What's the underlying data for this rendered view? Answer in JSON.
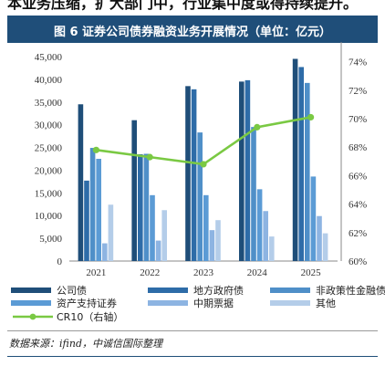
{
  "header": {
    "cut_text": "本业务压缩，扩大部门中，行业集中度或得持续提升。",
    "figure_title": "图 6 证券公司债券融资业务开展情况（单位：亿元）"
  },
  "source": "数据来源：ifind，中诚信国际整理",
  "colors": {
    "title_bg": "#1f4e79",
    "series": [
      "#1f4e79",
      "#2e6ca8",
      "#4f8fc8",
      "#5b9bd5",
      "#8db4e2",
      "#b4cde9"
    ],
    "line": "#7ac943"
  },
  "chart_data": {
    "type": "bar",
    "categories": [
      "2021",
      "2022",
      "2023",
      "2024",
      "2025"
    ],
    "series": [
      {
        "name": "公司债",
        "values": [
          34500,
          31000,
          38500,
          39500,
          44500
        ]
      },
      {
        "name": "地方政府债",
        "values": [
          17700,
          23500,
          37800,
          39800,
          42700
        ]
      },
      {
        "name": "非政策性金融债",
        "values": [
          24900,
          23600,
          28300,
          29500,
          39200
        ]
      },
      {
        "name": "资产支持证券",
        "values": [
          22500,
          14500,
          14500,
          15800,
          18600
        ]
      },
      {
        "name": "中期票据",
        "values": [
          3900,
          4500,
          6800,
          11000,
          9900
        ]
      },
      {
        "name": "其他",
        "values": [
          12400,
          11200,
          9000,
          5400,
          6100
        ]
      }
    ],
    "line_series": {
      "name": "CR10（右轴）",
      "values": [
        67.8,
        67.3,
        66.8,
        69.4,
        70.1
      ]
    },
    "ylim": [
      0,
      45000
    ],
    "yticks": [
      "0",
      "5,000",
      "10,000",
      "15,000",
      "20,000",
      "25,000",
      "30,000",
      "35,000",
      "40,000",
      "45,000"
    ],
    "y2lim": [
      60,
      75
    ],
    "y2ticks": [
      "60%",
      "62%",
      "64%",
      "66%",
      "68%",
      "70%",
      "72%",
      "74%"
    ],
    "legend": "bottom"
  }
}
